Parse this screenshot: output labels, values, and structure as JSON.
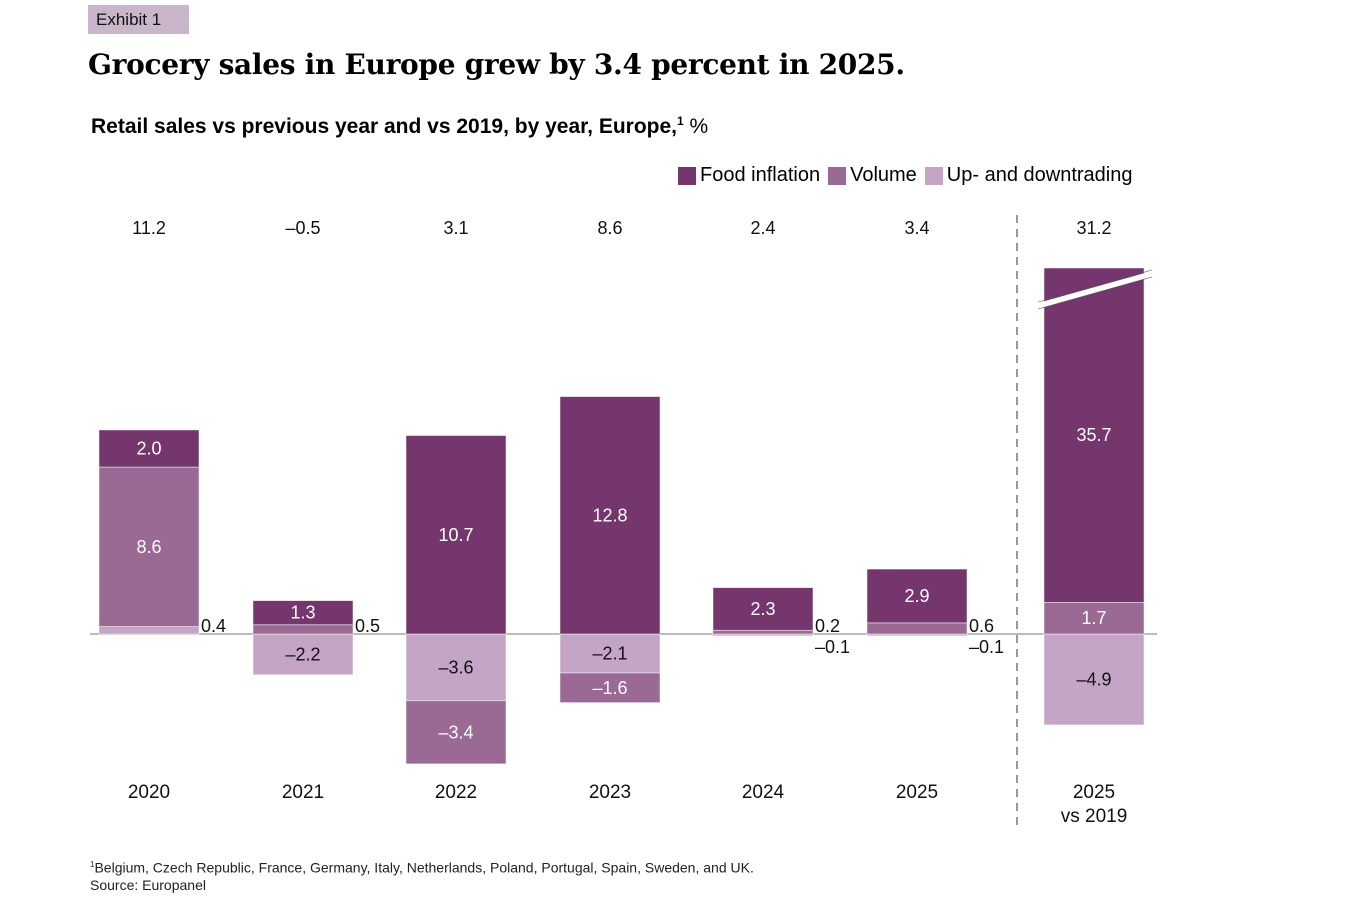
{
  "exhibit_label": "Exhibit 1",
  "title": "Grocery sales in Europe grew by 3.4 percent in 2025.",
  "subtitle": {
    "text": "Retail sales vs previous year and vs 2019, by year, Europe,",
    "footnote_marker": "1",
    "unit": "%"
  },
  "footnotes": {
    "marker": "1",
    "countries": "Belgium, Czech Republic, France, Germany, Italy, Netherlands, Poland, Portugal, Spain, Sweden, and UK.",
    "source": "Source: Europanel"
  },
  "chart_data": {
    "type": "bar",
    "stacked": true,
    "title": "Grocery sales in Europe grew by 3.4 percent in 2025.",
    "subtitle": "Retail sales vs previous year and vs 2019, by year, Europe, %",
    "xlabel": "",
    "ylabel": "%",
    "legend_position": "top-right",
    "grid": false,
    "categories": [
      "2020",
      "2021",
      "2022",
      "2023",
      "2024",
      "2025",
      "2025 vs 2019"
    ],
    "totals": [
      "11.2",
      "–0.5",
      "3.1",
      "8.6",
      "2.4",
      "3.4",
      "31.2"
    ],
    "series": [
      {
        "name": "Up- and downtrading",
        "color": "#c4a5c5",
        "values": [
          0.4,
          -2.2,
          -3.6,
          -2.1,
          -0.1,
          -0.1,
          -4.9
        ],
        "labels": [
          "0.4",
          "–2.2",
          "–3.6",
          "–2.1",
          "–0.1",
          "–0.1",
          "–4.9"
        ]
      },
      {
        "name": "Volume",
        "color": "#9a6a94",
        "values": [
          8.6,
          0.5,
          -3.4,
          -1.6,
          0.2,
          0.6,
          1.7
        ],
        "labels": [
          "8.6",
          "0.5",
          "–3.4",
          "–1.6",
          "0.2",
          "0.6",
          "1.7"
        ]
      },
      {
        "name": "Food inflation",
        "color": "#74366d",
        "values": [
          2.0,
          1.3,
          10.7,
          12.8,
          2.3,
          2.9,
          35.7
        ],
        "labels": [
          "2.0",
          "1.3",
          "10.7",
          "12.8",
          "2.3",
          "2.9",
          "35.7"
        ]
      }
    ],
    "legend_order": [
      "Food inflation",
      "Volume",
      "Up- and downtrading"
    ],
    "axis_break_on": "2025 vs 2019",
    "separator_before": "2025 vs 2019"
  }
}
